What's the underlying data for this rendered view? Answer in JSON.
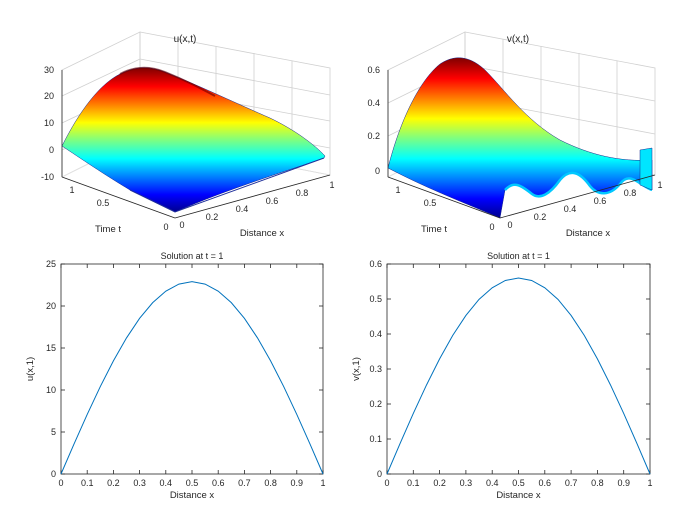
{
  "figure": {
    "background": "#ffffff",
    "axis_color": "#262626",
    "grid_color": "#dcdcdc",
    "line_color": "#0072bd"
  },
  "chart_data": [
    {
      "id": "surf_u",
      "type": "surface",
      "title": "u(x,t)",
      "xlabel": "Distance x",
      "ylabel": "Time t",
      "zlabel": "",
      "xlim": [
        0,
        1
      ],
      "ylim": [
        0,
        1
      ],
      "zlim": [
        -10,
        30
      ],
      "xticks": [
        "0",
        "0.2",
        "0.4",
        "0.6",
        "0.8",
        "1"
      ],
      "yticks": [
        "0",
        "0.5",
        "1"
      ],
      "zticks": [
        "-10",
        "0",
        "10",
        "20",
        "30"
      ],
      "zmax_peak": 29.5,
      "colormap": "jet"
    },
    {
      "id": "surf_v",
      "type": "surface",
      "title": "v(x,t)",
      "xlabel": "Distance x",
      "ylabel": "Time t",
      "zlabel": "",
      "xlim": [
        0,
        1
      ],
      "ylim": [
        0,
        1
      ],
      "zlim": [
        0,
        0.65
      ],
      "xticks": [
        "0",
        "0.2",
        "0.4",
        "0.6",
        "0.8",
        "1"
      ],
      "yticks": [
        "0",
        "0.5",
        "1"
      ],
      "zticks": [
        "0",
        "0.2",
        "0.4",
        "0.6"
      ],
      "zmax_peak": 0.64,
      "colormap": "jet"
    },
    {
      "id": "line_u",
      "type": "line",
      "title": "Solution at t = 1",
      "xlabel": "Distance x",
      "ylabel": "u(x,1)",
      "xlim": [
        0,
        1
      ],
      "ylim": [
        0,
        25
      ],
      "xticks": [
        "0",
        "0.1",
        "0.2",
        "0.3",
        "0.4",
        "0.5",
        "0.6",
        "0.7",
        "0.8",
        "0.9",
        "1"
      ],
      "yticks": [
        "0",
        "5",
        "10",
        "15",
        "20",
        "25"
      ],
      "series": [
        {
          "name": "u(x,1)",
          "x": [
            0,
            0.05,
            0.1,
            0.15,
            0.2,
            0.25,
            0.3,
            0.35,
            0.4,
            0.45,
            0.5,
            0.55,
            0.6,
            0.65,
            0.7,
            0.75,
            0.8,
            0.85,
            0.9,
            0.95,
            1
          ],
          "values": [
            0,
            3.59,
            7.09,
            10.41,
            13.47,
            16.2,
            18.53,
            20.4,
            21.77,
            22.61,
            22.9,
            22.61,
            21.77,
            20.4,
            18.53,
            16.2,
            13.47,
            10.41,
            7.09,
            3.59,
            0
          ]
        }
      ]
    },
    {
      "id": "line_v",
      "type": "line",
      "title": "Solution at t = 1",
      "xlabel": "Distance x",
      "ylabel": "v(x,1)",
      "xlim": [
        0,
        1
      ],
      "ylim": [
        0,
        0.6
      ],
      "xticks": [
        "0",
        "0.1",
        "0.2",
        "0.3",
        "0.4",
        "0.5",
        "0.6",
        "0.7",
        "0.8",
        "0.9",
        "1"
      ],
      "yticks": [
        "0",
        "0.1",
        "0.2",
        "0.3",
        "0.4",
        "0.5",
        "0.6"
      ],
      "series": [
        {
          "name": "v(x,1)",
          "x": [
            0,
            0.05,
            0.1,
            0.15,
            0.2,
            0.25,
            0.3,
            0.35,
            0.4,
            0.45,
            0.5,
            0.55,
            0.6,
            0.65,
            0.7,
            0.75,
            0.8,
            0.85,
            0.9,
            0.95,
            1
          ],
          "values": [
            0,
            0.0876,
            0.173,
            0.254,
            0.329,
            0.396,
            0.453,
            0.499,
            0.532,
            0.553,
            0.56,
            0.553,
            0.532,
            0.499,
            0.453,
            0.396,
            0.329,
            0.254,
            0.173,
            0.0876,
            0
          ]
        }
      ]
    }
  ]
}
